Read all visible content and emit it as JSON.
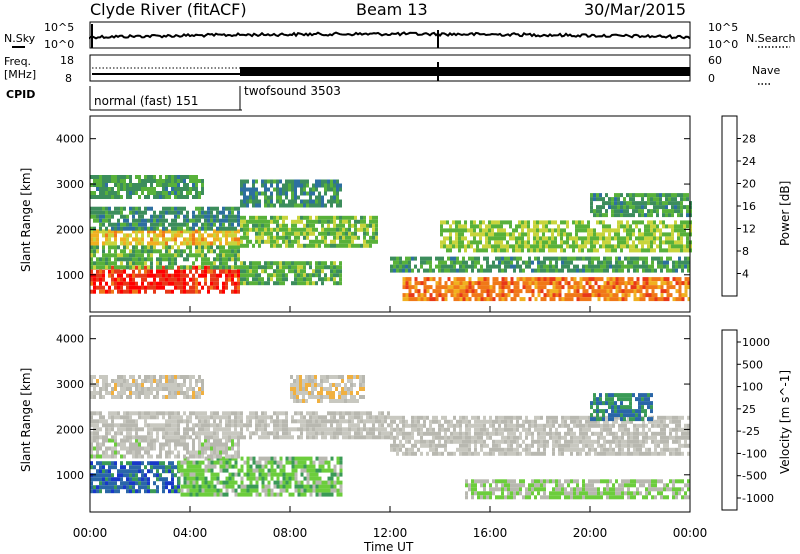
{
  "header": {
    "station": "Clyde River (fitACF)",
    "beam": "Beam 13",
    "date": "30/Mar/2015"
  },
  "noise_panel": {
    "left_label": "N.Sky",
    "right_label": "N.Search",
    "left_ticks": [
      "10^5",
      "10^0"
    ],
    "right_ticks": [
      "10^5",
      "10^0"
    ]
  },
  "freq_panel": {
    "left_label_1": "Freq.",
    "left_label_2": "[MHz]",
    "right_label": "Nave",
    "left_ticks": [
      "18",
      "8"
    ],
    "right_ticks": [
      "60",
      "0"
    ]
  },
  "cpid_panel": {
    "label": "CPID",
    "modes": [
      {
        "name": "normal (fast) 151",
        "start": "00:00",
        "end": "06:00"
      },
      {
        "name": "twofsound 3503",
        "start": "06:00",
        "end": "24:00"
      }
    ]
  },
  "colors": {
    "power_scale": [
      "#0a10f0",
      "#1c3fa6",
      "#2d6fa0",
      "#3c8d5c",
      "#58b13a",
      "#c8d43c",
      "#f0b020",
      "#f07818",
      "#e83818",
      "#ff0000"
    ],
    "velocity_scale": [
      "#ff0000",
      "#f05a10",
      "#f08a18",
      "#f0b040",
      "#c8c8c0",
      "#b8b8b0",
      "#6ccd3c",
      "#3a9a56",
      "#2a66a8",
      "#1838c8"
    ]
  },
  "chart_data": [
    {
      "type": "heatmap",
      "panel": "power",
      "xlabel": "Time UT",
      "ylabel": "Slant Range [km]",
      "x_ticks": [
        "00:00",
        "04:00",
        "08:00",
        "12:00",
        "16:00",
        "20:00",
        "00:00"
      ],
      "y_ticks": [
        1000,
        2000,
        3000,
        4000
      ],
      "xlim_hours": [
        0,
        24
      ],
      "ylim_km": [
        180,
        4500
      ],
      "colorbar": {
        "label": "Power [dB]",
        "ticks": [
          4,
          8,
          12,
          16,
          20,
          24,
          28
        ],
        "range": [
          0,
          32
        ]
      },
      "echo_bands": [
        {
          "t0": 0.0,
          "t1": 6.0,
          "r0": 600,
          "r1": 1200,
          "value": 28
        },
        {
          "t0": 0.0,
          "t1": 6.0,
          "r0": 1200,
          "r1": 1650,
          "value": 14
        },
        {
          "t0": 0.0,
          "t1": 6.0,
          "r0": 1650,
          "r1": 2000,
          "value": 20
        },
        {
          "t0": 0.0,
          "t1": 6.0,
          "r0": 2000,
          "r1": 2500,
          "value": 11
        },
        {
          "t0": 0.0,
          "t1": 4.5,
          "r0": 2700,
          "r1": 3200,
          "value": 12
        },
        {
          "t0": 6.0,
          "t1": 10.0,
          "r0": 800,
          "r1": 1300,
          "value": 14
        },
        {
          "t0": 6.0,
          "t1": 11.5,
          "r0": 1600,
          "r1": 2300,
          "value": 15
        },
        {
          "t0": 6.0,
          "t1": 10.0,
          "r0": 2500,
          "r1": 3100,
          "value": 11
        },
        {
          "t0": 12.5,
          "t1": 24.0,
          "r0": 500,
          "r1": 950,
          "value": 24
        },
        {
          "t0": 12.0,
          "t1": 24.0,
          "r0": 1050,
          "r1": 1400,
          "value": 12
        },
        {
          "t0": 14.0,
          "t1": 24.0,
          "r0": 1500,
          "r1": 2200,
          "value": 16
        },
        {
          "t0": 20.0,
          "t1": 24.0,
          "r0": 2300,
          "r1": 2800,
          "value": 12
        }
      ]
    },
    {
      "type": "heatmap",
      "panel": "velocity",
      "xlabel": "Time UT",
      "ylabel": "Slant Range [km]",
      "x_ticks": [
        "00:00",
        "04:00",
        "08:00",
        "12:00",
        "16:00",
        "20:00",
        "00:00"
      ],
      "y_ticks": [
        1000,
        2000,
        3000,
        4000
      ],
      "xlim_hours": [
        0,
        24
      ],
      "ylim_km": [
        180,
        4500
      ],
      "colorbar": {
        "label": "Velocity [m s^-1]",
        "ticks": [
          "1000",
          "500",
          "100",
          "25",
          "-25",
          "-100",
          "-500",
          "-1000"
        ],
        "range": [
          -1000,
          1000
        ]
      },
      "echo_bands": [
        {
          "t0": 0.0,
          "t1": 3.5,
          "r0": 600,
          "r1": 1300,
          "value": 700
        },
        {
          "t0": 3.5,
          "t1": 10.0,
          "r0": 600,
          "r1": 1400,
          "value": 300
        },
        {
          "t0": 0.0,
          "t1": 6.0,
          "r0": 1400,
          "r1": 1800,
          "value": 60
        },
        {
          "t0": 0.0,
          "t1": 12.0,
          "r0": 1800,
          "r1": 2400,
          "value": 0
        },
        {
          "t0": 0.0,
          "t1": 4.5,
          "r0": 2700,
          "r1": 3200,
          "value": -60
        },
        {
          "t0": 8.0,
          "t1": 11.0,
          "r0": 2600,
          "r1": 3200,
          "value": -120
        },
        {
          "t0": 12.0,
          "t1": 24.0,
          "r0": 1500,
          "r1": 2300,
          "value": 0
        },
        {
          "t0": 15.0,
          "t1": 24.0,
          "r0": 500,
          "r1": 900,
          "value": 200
        },
        {
          "t0": 20.0,
          "t1": 22.5,
          "r0": 2200,
          "r1": 2800,
          "value": 600
        }
      ]
    }
  ]
}
